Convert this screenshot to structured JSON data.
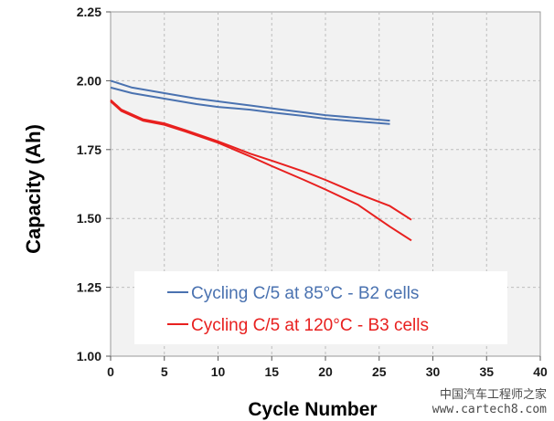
{
  "chart_data": {
    "type": "line",
    "xlabel": "Cycle Number",
    "ylabel": "Capacity (Ah)",
    "xlim": [
      0,
      40
    ],
    "ylim": [
      1.0,
      2.25
    ],
    "xticks": [
      0,
      5,
      10,
      15,
      20,
      25,
      30,
      35,
      40
    ],
    "yticks": [
      "1.00",
      "1.25",
      "1.50",
      "1.75",
      "2.00",
      "2.25"
    ],
    "grid": true,
    "legend_position": "bottom-center",
    "series": [
      {
        "name": "Cycling C/5 at 85°C - B2 cells",
        "color": "#4a72b0",
        "lines": [
          {
            "x": [
              0,
              2,
              5,
              8,
              10,
              13,
              15,
              18,
              20,
              23,
              26
            ],
            "y": [
              2.0,
              1.975,
              1.955,
              1.935,
              1.925,
              1.91,
              1.9,
              1.885,
              1.875,
              1.865,
              1.855
            ]
          },
          {
            "x": [
              0,
              2,
              5,
              8,
              10,
              13,
              15,
              18,
              20,
              23,
              26
            ],
            "y": [
              1.975,
              1.955,
              1.935,
              1.915,
              1.905,
              1.895,
              1.885,
              1.872,
              1.862,
              1.852,
              1.843
            ]
          }
        ]
      },
      {
        "name": "Cycling C/5 at 120°C - B3 cells",
        "color": "#e8201f",
        "lines": [
          {
            "x": [
              0,
              1,
              3,
              5,
              7,
              10,
              13,
              15,
              18,
              20,
              23,
              26,
              28
            ],
            "y": [
              1.93,
              1.895,
              1.86,
              1.845,
              1.82,
              1.78,
              1.735,
              1.71,
              1.67,
              1.64,
              1.59,
              1.545,
              1.495
            ]
          },
          {
            "x": [
              0,
              1,
              3,
              5,
              7,
              10,
              13,
              15,
              18,
              20,
              23,
              26,
              28
            ],
            "y": [
              1.925,
              1.89,
              1.855,
              1.84,
              1.815,
              1.775,
              1.725,
              1.69,
              1.64,
              1.605,
              1.55,
              1.47,
              1.42
            ]
          }
        ]
      }
    ]
  },
  "watermark": {
    "line1": "中国汽车工程师之家",
    "line2": "www.cartech8.com"
  }
}
